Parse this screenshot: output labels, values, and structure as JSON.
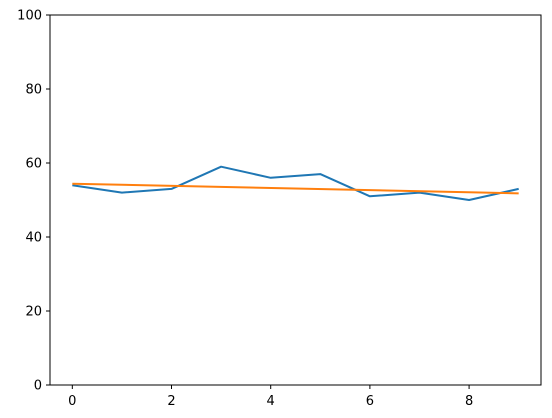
{
  "chart_data": {
    "type": "line",
    "title": "",
    "xlabel": "",
    "ylabel": "",
    "xlim": [
      -0.45,
      9.45
    ],
    "ylim": [
      0,
      100
    ],
    "grid": false,
    "legend": "none",
    "x_ticks": [
      "0",
      "2",
      "4",
      "6",
      "8"
    ],
    "y_ticks": [
      "0",
      "20",
      "40",
      "60",
      "80",
      "100"
    ],
    "series": [
      {
        "color": "#1f77b4",
        "x": [
          0,
          1,
          2,
          3,
          4,
          5,
          6,
          7,
          8,
          9
        ],
        "values": [
          54,
          52,
          53,
          59,
          56,
          57,
          51,
          52,
          50,
          53
        ]
      },
      {
        "color": "#ff7f0e",
        "x": [
          0,
          9
        ],
        "values": [
          54.4,
          51.8
        ]
      }
    ]
  }
}
